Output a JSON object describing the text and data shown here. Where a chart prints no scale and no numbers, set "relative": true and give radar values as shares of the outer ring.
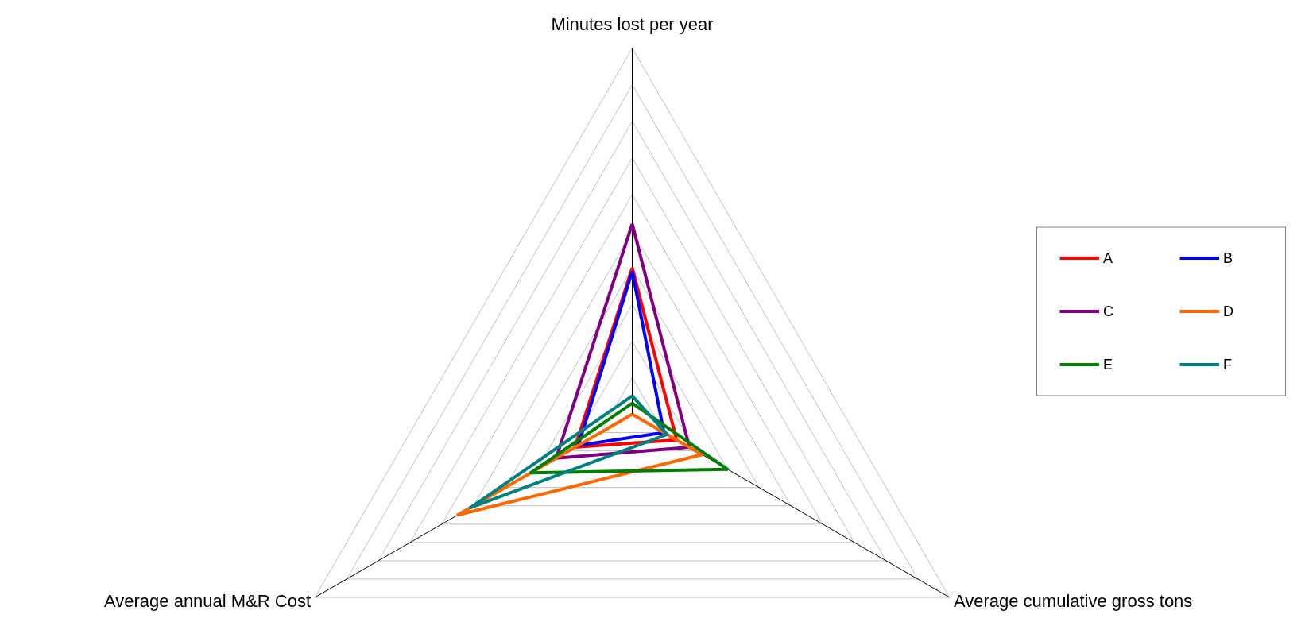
{
  "chart_data": {
    "type": "radar",
    "relative": true,
    "grid": true,
    "legend": "right",
    "categories": [
      "Minutes lost per year",
      "Average cumulative gross tons",
      "Average annual M&R Cost"
    ],
    "series": [
      {
        "name": "A",
        "color": "#ff0000",
        "values": [
          0.4,
          0.14,
          0.18
        ]
      },
      {
        "name": "B",
        "color": "#0000ff",
        "values": [
          0.39,
          0.1,
          0.17
        ]
      },
      {
        "name": "C",
        "color": "#800080",
        "values": [
          0.52,
          0.18,
          0.24
        ]
      },
      {
        "name": "D",
        "color": "#ff6600",
        "values": [
          0.0,
          0.22,
          0.55
        ]
      },
      {
        "name": "E",
        "color": "#008000",
        "values": [
          0.03,
          0.3,
          0.32
        ]
      },
      {
        "name": "F",
        "color": "#008080",
        "values": [
          0.05,
          0.11,
          0.51
        ]
      }
    ]
  }
}
